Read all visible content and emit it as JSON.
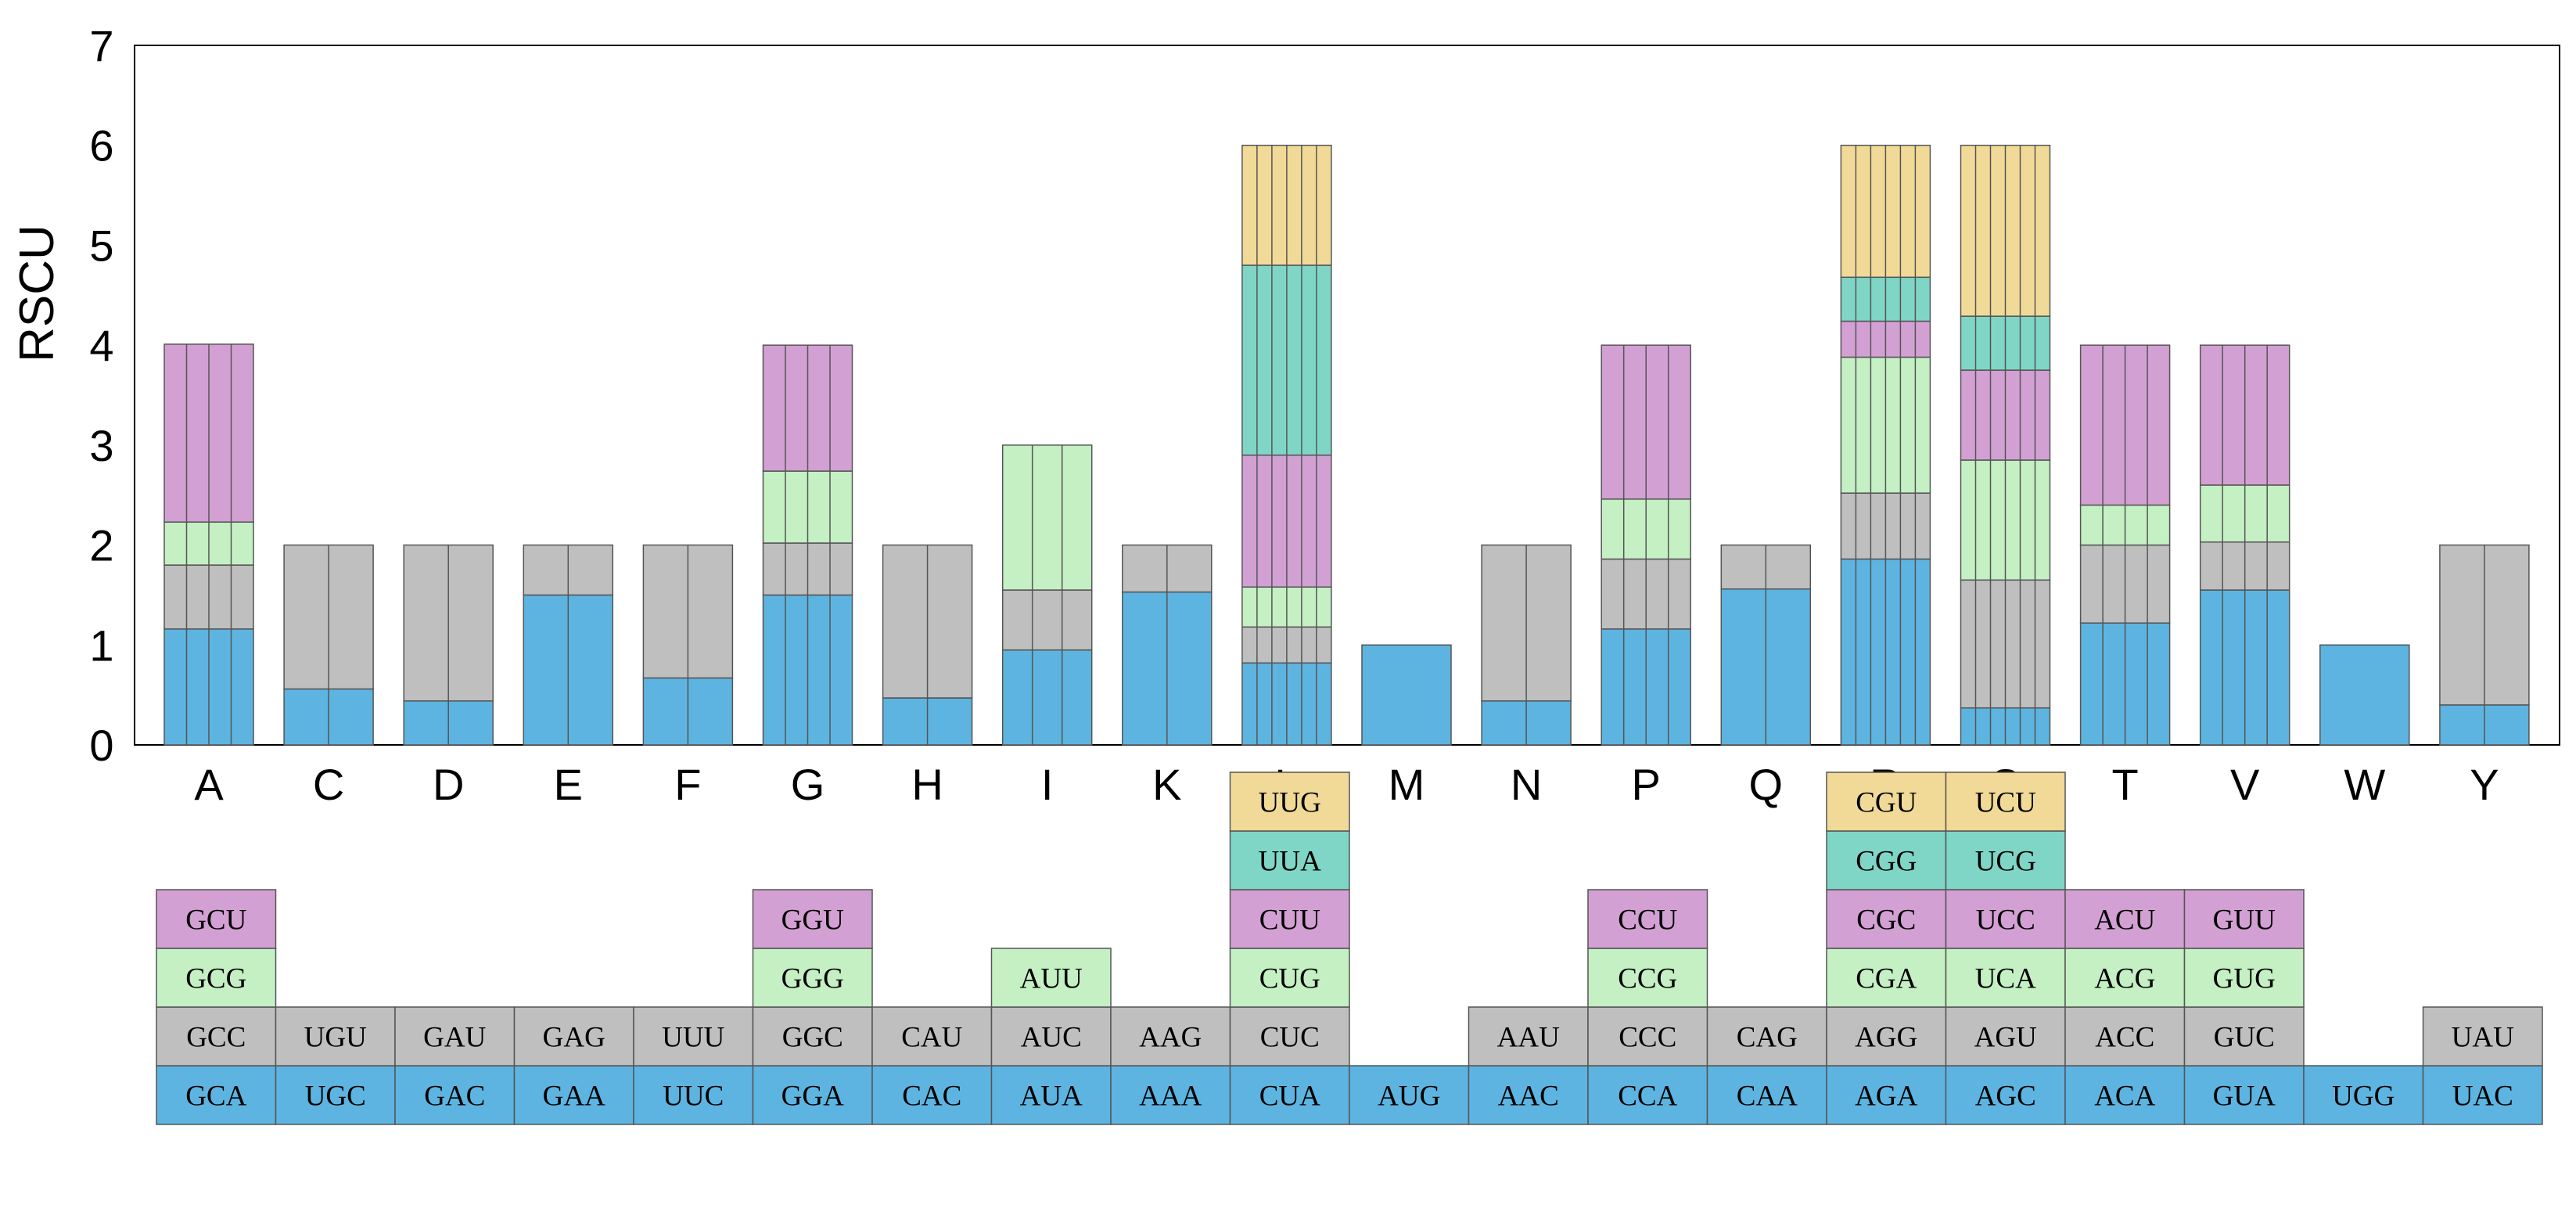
{
  "chart_data": {
    "type": "bar",
    "stacked": true,
    "ylabel": "RSCU",
    "ylim": [
      0,
      7
    ],
    "yticks": [
      0,
      1,
      2,
      3,
      4,
      5,
      6,
      7
    ],
    "grid": false,
    "series_colors": [
      "#5db4e0",
      "#bfbfbf",
      "#c4f0c4",
      "#d3a0d3",
      "#7fd6c6",
      "#f1da98"
    ],
    "categories": [
      "A",
      "C",
      "D",
      "E",
      "F",
      "G",
      "H",
      "I",
      "K",
      "L",
      "M",
      "N",
      "P",
      "Q",
      "R",
      "S",
      "T",
      "V",
      "W",
      "Y"
    ],
    "stacks": [
      {
        "aa": "A",
        "values": [
          1.16,
          0.64,
          0.43,
          1.78
        ],
        "codons": [
          "GCA",
          "GCC",
          "GCG",
          "GCU"
        ]
      },
      {
        "aa": "C",
        "values": [
          0.56,
          1.44
        ],
        "codons": [
          "UGC",
          "UGU"
        ]
      },
      {
        "aa": "D",
        "values": [
          0.44,
          1.56
        ],
        "codons": [
          "GAC",
          "GAU"
        ]
      },
      {
        "aa": "E",
        "values": [
          1.5,
          0.5
        ],
        "codons": [
          "GAA",
          "GAG"
        ]
      },
      {
        "aa": "F",
        "values": [
          0.67,
          1.33
        ],
        "codons": [
          "UUC",
          "UUU"
        ]
      },
      {
        "aa": "G",
        "values": [
          1.5,
          0.52,
          0.72,
          1.26
        ],
        "codons": [
          "GGA",
          "GGC",
          "GGG",
          "GGU"
        ]
      },
      {
        "aa": "H",
        "values": [
          0.47,
          1.53
        ],
        "codons": [
          "CAC",
          "CAU"
        ]
      },
      {
        "aa": "I",
        "values": [
          0.95,
          0.6,
          1.45
        ],
        "codons": [
          "AUA",
          "AUC",
          "AUU"
        ]
      },
      {
        "aa": "K",
        "values": [
          1.53,
          0.47
        ],
        "codons": [
          "AAA",
          "AAG"
        ]
      },
      {
        "aa": "L",
        "values": [
          0.82,
          0.36,
          0.4,
          1.32,
          1.9,
          1.2
        ],
        "codons": [
          "CUA",
          "CUC",
          "CUG",
          "CUU",
          "UUA",
          "UUG"
        ]
      },
      {
        "aa": "M",
        "values": [
          1.0
        ],
        "codons": [
          "AUG"
        ]
      },
      {
        "aa": "N",
        "values": [
          0.44,
          1.56
        ],
        "codons": [
          "AAC",
          "AAU"
        ]
      },
      {
        "aa": "P",
        "values": [
          1.16,
          0.7,
          0.6,
          1.54
        ],
        "codons": [
          "CCA",
          "CCC",
          "CCG",
          "CCU"
        ]
      },
      {
        "aa": "Q",
        "values": [
          1.56,
          0.44
        ],
        "codons": [
          "CAA",
          "CAG"
        ]
      },
      {
        "aa": "R",
        "values": [
          1.86,
          0.66,
          1.36,
          0.36,
          0.44,
          1.32
        ],
        "codons": [
          "AGA",
          "AGG",
          "CGA",
          "CGC",
          "CGG",
          "CGU"
        ]
      },
      {
        "aa": "S",
        "values": [
          0.37,
          1.28,
          1.2,
          0.9,
          0.54,
          1.71
        ],
        "codons": [
          "AGC",
          "AGU",
          "UCA",
          "UCC",
          "UCG",
          "UCU"
        ]
      },
      {
        "aa": "T",
        "values": [
          1.22,
          0.78,
          0.4,
          1.6
        ],
        "codons": [
          "ACA",
          "ACC",
          "ACG",
          "ACU"
        ]
      },
      {
        "aa": "V",
        "values": [
          1.55,
          0.48,
          0.57,
          1.4
        ],
        "codons": [
          "GUA",
          "GUC",
          "GUG",
          "GUU"
        ]
      },
      {
        "aa": "W",
        "values": [
          1.0
        ],
        "codons": [
          "UGG"
        ]
      },
      {
        "aa": "Y",
        "values": [
          0.4,
          1.6
        ],
        "codons": [
          "UAC",
          "UAU"
        ]
      }
    ]
  }
}
